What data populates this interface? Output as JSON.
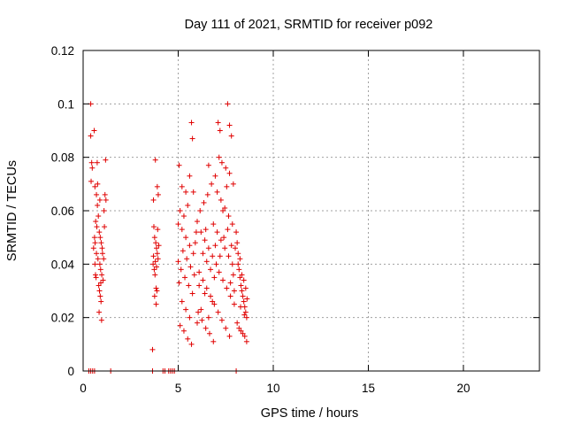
{
  "chart_data": {
    "type": "scatter",
    "title": "Day 111 of 2021, SRMTID for receiver p092",
    "xlabel": "GPS time / hours",
    "ylabel": "SRMTID / TECUs",
    "xlim": [
      0,
      24
    ],
    "ylim": [
      0,
      0.12
    ],
    "grid": true,
    "marker": "+",
    "series_color": "#e00000",
    "x_ticks": [
      0,
      5,
      10,
      15,
      20
    ],
    "y_ticks": [
      0,
      0.02,
      0.04,
      0.06,
      0.08,
      0.1,
      0.12
    ],
    "x_tick_labels": [
      "0",
      "5",
      "10",
      "15",
      "20"
    ],
    "y_tick_labels": [
      "0",
      "0.02",
      "0.04",
      "0.06",
      "0.08",
      "0.1",
      "0.12"
    ],
    "points": [
      [
        0.4,
        0.1
      ],
      [
        0.4,
        0.088
      ],
      [
        0.58,
        0.09
      ],
      [
        0.42,
        0.071
      ],
      [
        0.45,
        0.078
      ],
      [
        0.48,
        0.076
      ],
      [
        0.62,
        0.069
      ],
      [
        0.7,
        0.066
      ],
      [
        0.75,
        0.062
      ],
      [
        0.8,
        0.058
      ],
      [
        0.66,
        0.056
      ],
      [
        0.72,
        0.054
      ],
      [
        0.85,
        0.052
      ],
      [
        0.9,
        0.05
      ],
      [
        0.95,
        0.048
      ],
      [
        1.0,
        0.046
      ],
      [
        0.7,
        0.044
      ],
      [
        0.78,
        0.042
      ],
      [
        0.88,
        0.04
      ],
      [
        0.92,
        0.038
      ],
      [
        0.98,
        0.036
      ],
      [
        1.05,
        0.034
      ],
      [
        0.82,
        0.032
      ],
      [
        0.86,
        0.03
      ],
      [
        0.9,
        0.028
      ],
      [
        0.94,
        0.026
      ],
      [
        0.84,
        0.022
      ],
      [
        0.97,
        0.019
      ],
      [
        0.55,
        0.046
      ],
      [
        0.6,
        0.05
      ],
      [
        0.62,
        0.04
      ],
      [
        0.65,
        0.036
      ],
      [
        0.68,
        0.035
      ],
      [
        1.1,
        0.06
      ],
      [
        1.15,
        0.066
      ],
      [
        1.18,
        0.079
      ],
      [
        1.2,
        0.064
      ],
      [
        1.12,
        0.054
      ],
      [
        1.08,
        0.042
      ],
      [
        1.02,
        0.044
      ],
      [
        0.76,
        0.07
      ],
      [
        0.74,
        0.078
      ],
      [
        0.63,
        0.048
      ],
      [
        0.88,
        0.064
      ],
      [
        0.93,
        0.033
      ],
      [
        3.65,
        0.008
      ],
      [
        3.7,
        0.064
      ],
      [
        3.8,
        0.079
      ],
      [
        3.9,
        0.069
      ],
      [
        3.95,
        0.066
      ],
      [
        3.72,
        0.054
      ],
      [
        3.76,
        0.05
      ],
      [
        3.82,
        0.048
      ],
      [
        3.86,
        0.046
      ],
      [
        3.9,
        0.044
      ],
      [
        3.94,
        0.042
      ],
      [
        3.68,
        0.04
      ],
      [
        3.74,
        0.038
      ],
      [
        3.78,
        0.036
      ],
      [
        3.84,
        0.031
      ],
      [
        3.88,
        0.03
      ],
      [
        3.92,
        0.053
      ],
      [
        3.98,
        0.047
      ],
      [
        3.76,
        0.028
      ],
      [
        3.84,
        0.025
      ],
      [
        3.7,
        0.043
      ],
      [
        3.8,
        0.041
      ],
      [
        3.86,
        0.039
      ],
      [
        5.05,
        0.077
      ],
      [
        5.2,
        0.069
      ],
      [
        5.4,
        0.067
      ],
      [
        5.5,
        0.062
      ],
      [
        5.7,
        0.093
      ],
      [
        5.75,
        0.087
      ],
      [
        5.6,
        0.073
      ],
      [
        5.8,
        0.067
      ],
      [
        5.1,
        0.06
      ],
      [
        5.3,
        0.058
      ],
      [
        5.0,
        0.055
      ],
      [
        5.2,
        0.053
      ],
      [
        5.4,
        0.05
      ],
      [
        5.6,
        0.047
      ],
      [
        5.8,
        0.044
      ],
      [
        5.0,
        0.041
      ],
      [
        5.15,
        0.038
      ],
      [
        5.35,
        0.035
      ],
      [
        5.55,
        0.032
      ],
      [
        5.75,
        0.029
      ],
      [
        5.2,
        0.026
      ],
      [
        5.4,
        0.023
      ],
      [
        5.6,
        0.02
      ],
      [
        5.1,
        0.017
      ],
      [
        5.3,
        0.015
      ],
      [
        5.5,
        0.012
      ],
      [
        5.7,
        0.01
      ],
      [
        5.25,
        0.045
      ],
      [
        5.45,
        0.042
      ],
      [
        5.65,
        0.039
      ],
      [
        5.85,
        0.036
      ],
      [
        5.05,
        0.033
      ],
      [
        5.95,
        0.052
      ],
      [
        5.9,
        0.048
      ],
      [
        6.0,
        0.056
      ],
      [
        6.2,
        0.052
      ],
      [
        6.4,
        0.049
      ],
      [
        6.6,
        0.046
      ],
      [
        6.8,
        0.043
      ],
      [
        7.0,
        0.04
      ],
      [
        6.1,
        0.037
      ],
      [
        6.3,
        0.034
      ],
      [
        6.5,
        0.031
      ],
      [
        6.7,
        0.028
      ],
      [
        6.9,
        0.025
      ],
      [
        6.05,
        0.022
      ],
      [
        6.25,
        0.019
      ],
      [
        6.45,
        0.016
      ],
      [
        6.65,
        0.014
      ],
      [
        6.85,
        0.011
      ],
      [
        6.15,
        0.06
      ],
      [
        6.35,
        0.063
      ],
      [
        6.55,
        0.066
      ],
      [
        6.75,
        0.07
      ],
      [
        6.95,
        0.073
      ],
      [
        6.6,
        0.077
      ],
      [
        6.3,
        0.044
      ],
      [
        6.5,
        0.041
      ],
      [
        6.7,
        0.038
      ],
      [
        6.9,
        0.035
      ],
      [
        6.1,
        0.032
      ],
      [
        6.4,
        0.029
      ],
      [
        6.8,
        0.026
      ],
      [
        6.2,
        0.023
      ],
      [
        6.6,
        0.02
      ],
      [
        6.0,
        0.018
      ],
      [
        6.95,
        0.047
      ],
      [
        6.45,
        0.053
      ],
      [
        6.85,
        0.055
      ],
      [
        7.1,
        0.093
      ],
      [
        7.2,
        0.09
      ],
      [
        7.6,
        0.1
      ],
      [
        7.7,
        0.092
      ],
      [
        7.8,
        0.088
      ],
      [
        7.15,
        0.08
      ],
      [
        7.3,
        0.078
      ],
      [
        7.5,
        0.076
      ],
      [
        7.7,
        0.074
      ],
      [
        7.9,
        0.07
      ],
      [
        7.05,
        0.067
      ],
      [
        7.25,
        0.064
      ],
      [
        7.45,
        0.061
      ],
      [
        7.65,
        0.058
      ],
      [
        7.85,
        0.055
      ],
      [
        7.05,
        0.052
      ],
      [
        7.25,
        0.049
      ],
      [
        7.45,
        0.046
      ],
      [
        7.65,
        0.043
      ],
      [
        7.85,
        0.04
      ],
      [
        7.15,
        0.037
      ],
      [
        7.35,
        0.034
      ],
      [
        7.55,
        0.031
      ],
      [
        7.75,
        0.028
      ],
      [
        7.95,
        0.025
      ],
      [
        7.1,
        0.022
      ],
      [
        7.3,
        0.019
      ],
      [
        7.5,
        0.016
      ],
      [
        7.7,
        0.013
      ],
      [
        7.2,
        0.043
      ],
      [
        7.4,
        0.05
      ],
      [
        7.6,
        0.053
      ],
      [
        7.8,
        0.047
      ],
      [
        7.9,
        0.036
      ],
      [
        7.35,
        0.06
      ],
      [
        7.55,
        0.069
      ],
      [
        7.75,
        0.033
      ],
      [
        7.95,
        0.03
      ],
      [
        8.05,
        0.052
      ],
      [
        8.1,
        0.048
      ],
      [
        8.15,
        0.04
      ],
      [
        8.2,
        0.038
      ],
      [
        8.25,
        0.035
      ],
      [
        8.3,
        0.032
      ],
      [
        8.35,
        0.03
      ],
      [
        8.4,
        0.028
      ],
      [
        8.45,
        0.026
      ],
      [
        8.5,
        0.024
      ],
      [
        8.55,
        0.022
      ],
      [
        8.6,
        0.02
      ],
      [
        8.1,
        0.018
      ],
      [
        8.2,
        0.016
      ],
      [
        8.3,
        0.015
      ],
      [
        8.4,
        0.014
      ],
      [
        8.5,
        0.013
      ],
      [
        8.6,
        0.011
      ],
      [
        8.15,
        0.044
      ],
      [
        8.25,
        0.042
      ],
      [
        8.35,
        0.036
      ],
      [
        8.45,
        0.034
      ],
      [
        8.55,
        0.031
      ],
      [
        8.62,
        0.027
      ],
      [
        8.0,
        0.046
      ],
      [
        8.28,
        0.024
      ],
      [
        8.48,
        0.021
      ],
      [
        0.3,
        0
      ],
      [
        0.4,
        0
      ],
      [
        0.5,
        0
      ],
      [
        0.6,
        0
      ],
      [
        1.45,
        0
      ],
      [
        3.65,
        0
      ],
      [
        4.2,
        0
      ],
      [
        4.3,
        0
      ],
      [
        4.5,
        0
      ],
      [
        4.6,
        0
      ],
      [
        4.7,
        0
      ],
      [
        4.8,
        0
      ],
      [
        8.05,
        0
      ]
    ]
  }
}
